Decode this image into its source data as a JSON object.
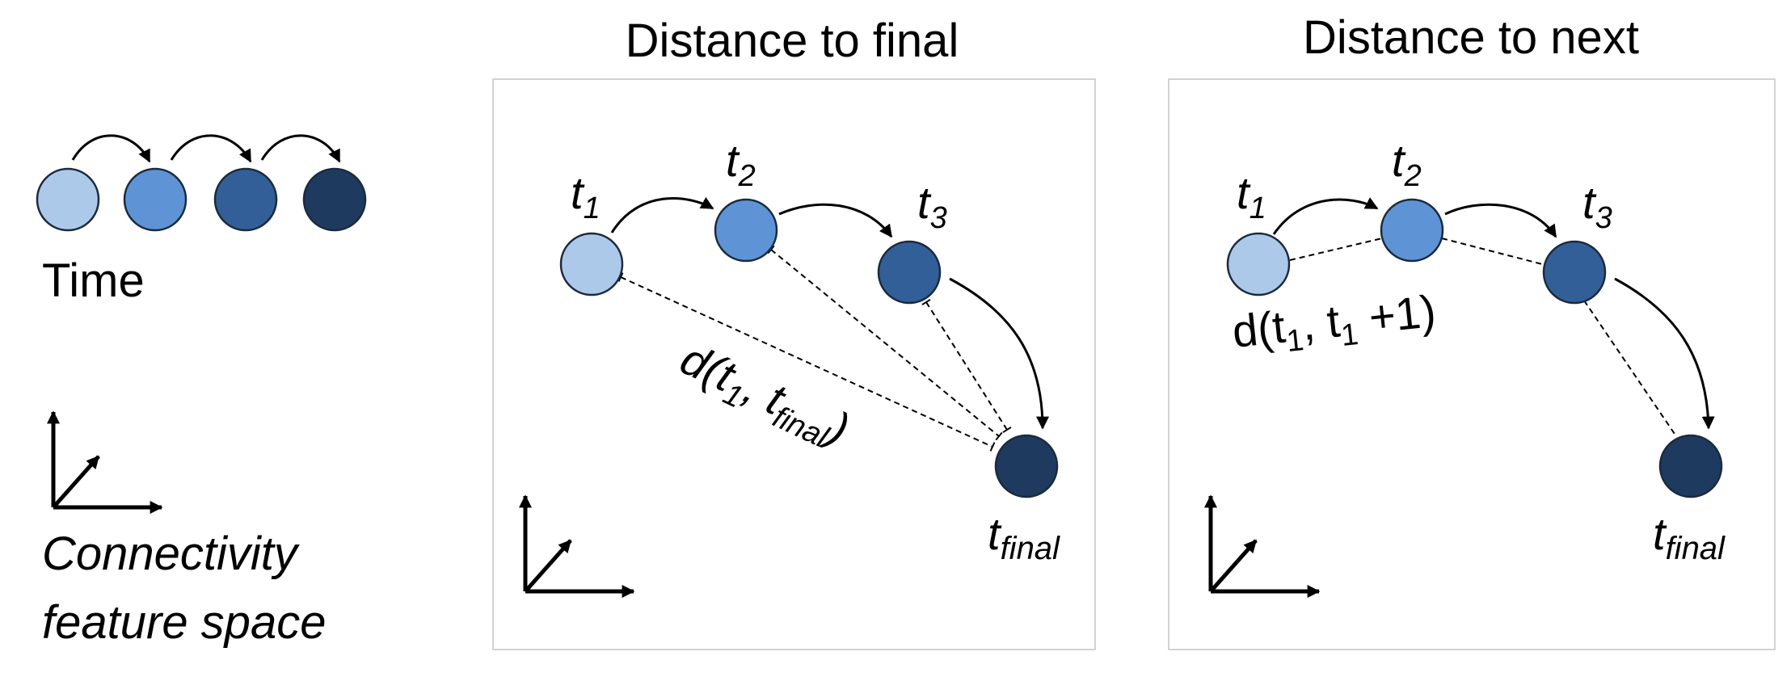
{
  "colors": {
    "t1": "#adc9ea",
    "t2": "#5e94d5",
    "t3": "#325f98",
    "tfinal": "#1f3a5f",
    "node_stroke": "#1b2a3d",
    "panel_border": "#c8c8c8",
    "text": "#000000"
  },
  "legend": {
    "time_label": "Time",
    "space_label_line1": "Connectivity",
    "space_label_line2": "feature space"
  },
  "panels": [
    {
      "title": "Distance to final",
      "node_labels": {
        "t1": {
          "base": "t",
          "sub": "1"
        },
        "t2": {
          "base": "t",
          "sub": "2"
        },
        "t3": {
          "base": "t",
          "sub": "3"
        },
        "tfinal": {
          "base": "t",
          "sub": "final"
        }
      },
      "distance_label": {
        "prefix": "d(t",
        "sub1": "1",
        "mid": ", t",
        "sub2": "final",
        "suffix": ")"
      }
    },
    {
      "title": "Distance to next",
      "node_labels": {
        "t1": {
          "base": "t",
          "sub": "1"
        },
        "t2": {
          "base": "t",
          "sub": "2"
        },
        "t3": {
          "base": "t",
          "sub": "3"
        },
        "tfinal": {
          "base": "t",
          "sub": "final"
        }
      },
      "distance_label": {
        "prefix": "d(t",
        "sub1": "1",
        "mid": ", t",
        "sub2": "1",
        "suffix": " +1)"
      }
    }
  ]
}
